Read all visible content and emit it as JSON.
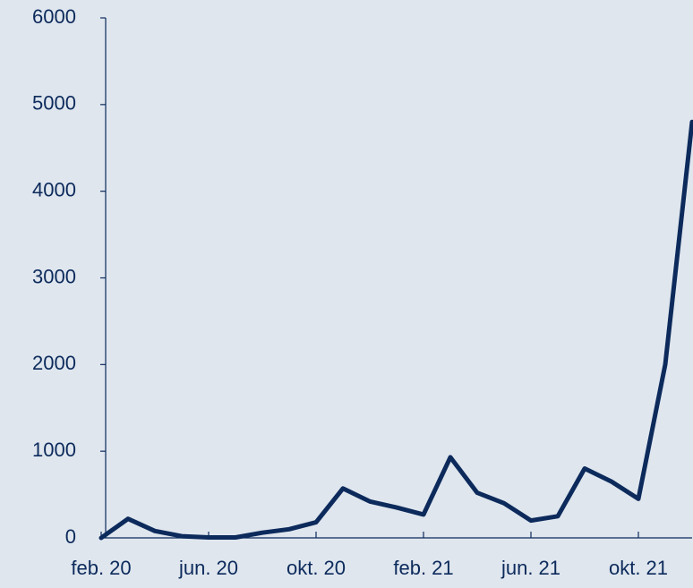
{
  "chart_data": {
    "type": "line",
    "x": [
      "2020-02",
      "2020-03",
      "2020-04",
      "2020-05",
      "2020-06",
      "2020-07",
      "2020-08",
      "2020-09",
      "2020-10",
      "2020-11",
      "2020-12",
      "2021-01",
      "2021-02",
      "2021-03",
      "2021-04",
      "2021-05",
      "2021-06",
      "2021-07",
      "2021-08",
      "2021-09",
      "2021-10",
      "2021-11",
      "2021-12"
    ],
    "series": [
      {
        "color": "#0c2a5b",
        "values": [
          0,
          220,
          80,
          20,
          5,
          5,
          60,
          100,
          180,
          570,
          420,
          350,
          270,
          930,
          520,
          400,
          200,
          250,
          800,
          650,
          450,
          2000,
          4800
        ]
      }
    ],
    "xlim": [
      "2020-02",
      "2021-12"
    ],
    "xticks": [
      {
        "value": "2020-02",
        "label": "feb. 20"
      },
      {
        "value": "2020-06",
        "label": "jun. 20"
      },
      {
        "value": "2020-10",
        "label": "okt. 20"
      },
      {
        "value": "2021-02",
        "label": "feb. 21"
      },
      {
        "value": "2021-06",
        "label": "jun. 21"
      },
      {
        "value": "2021-10",
        "label": "okt. 21"
      }
    ],
    "ylim": [
      0,
      6000
    ],
    "yticks": [
      0,
      1000,
      2000,
      3000,
      4000,
      5000,
      6000
    ]
  }
}
